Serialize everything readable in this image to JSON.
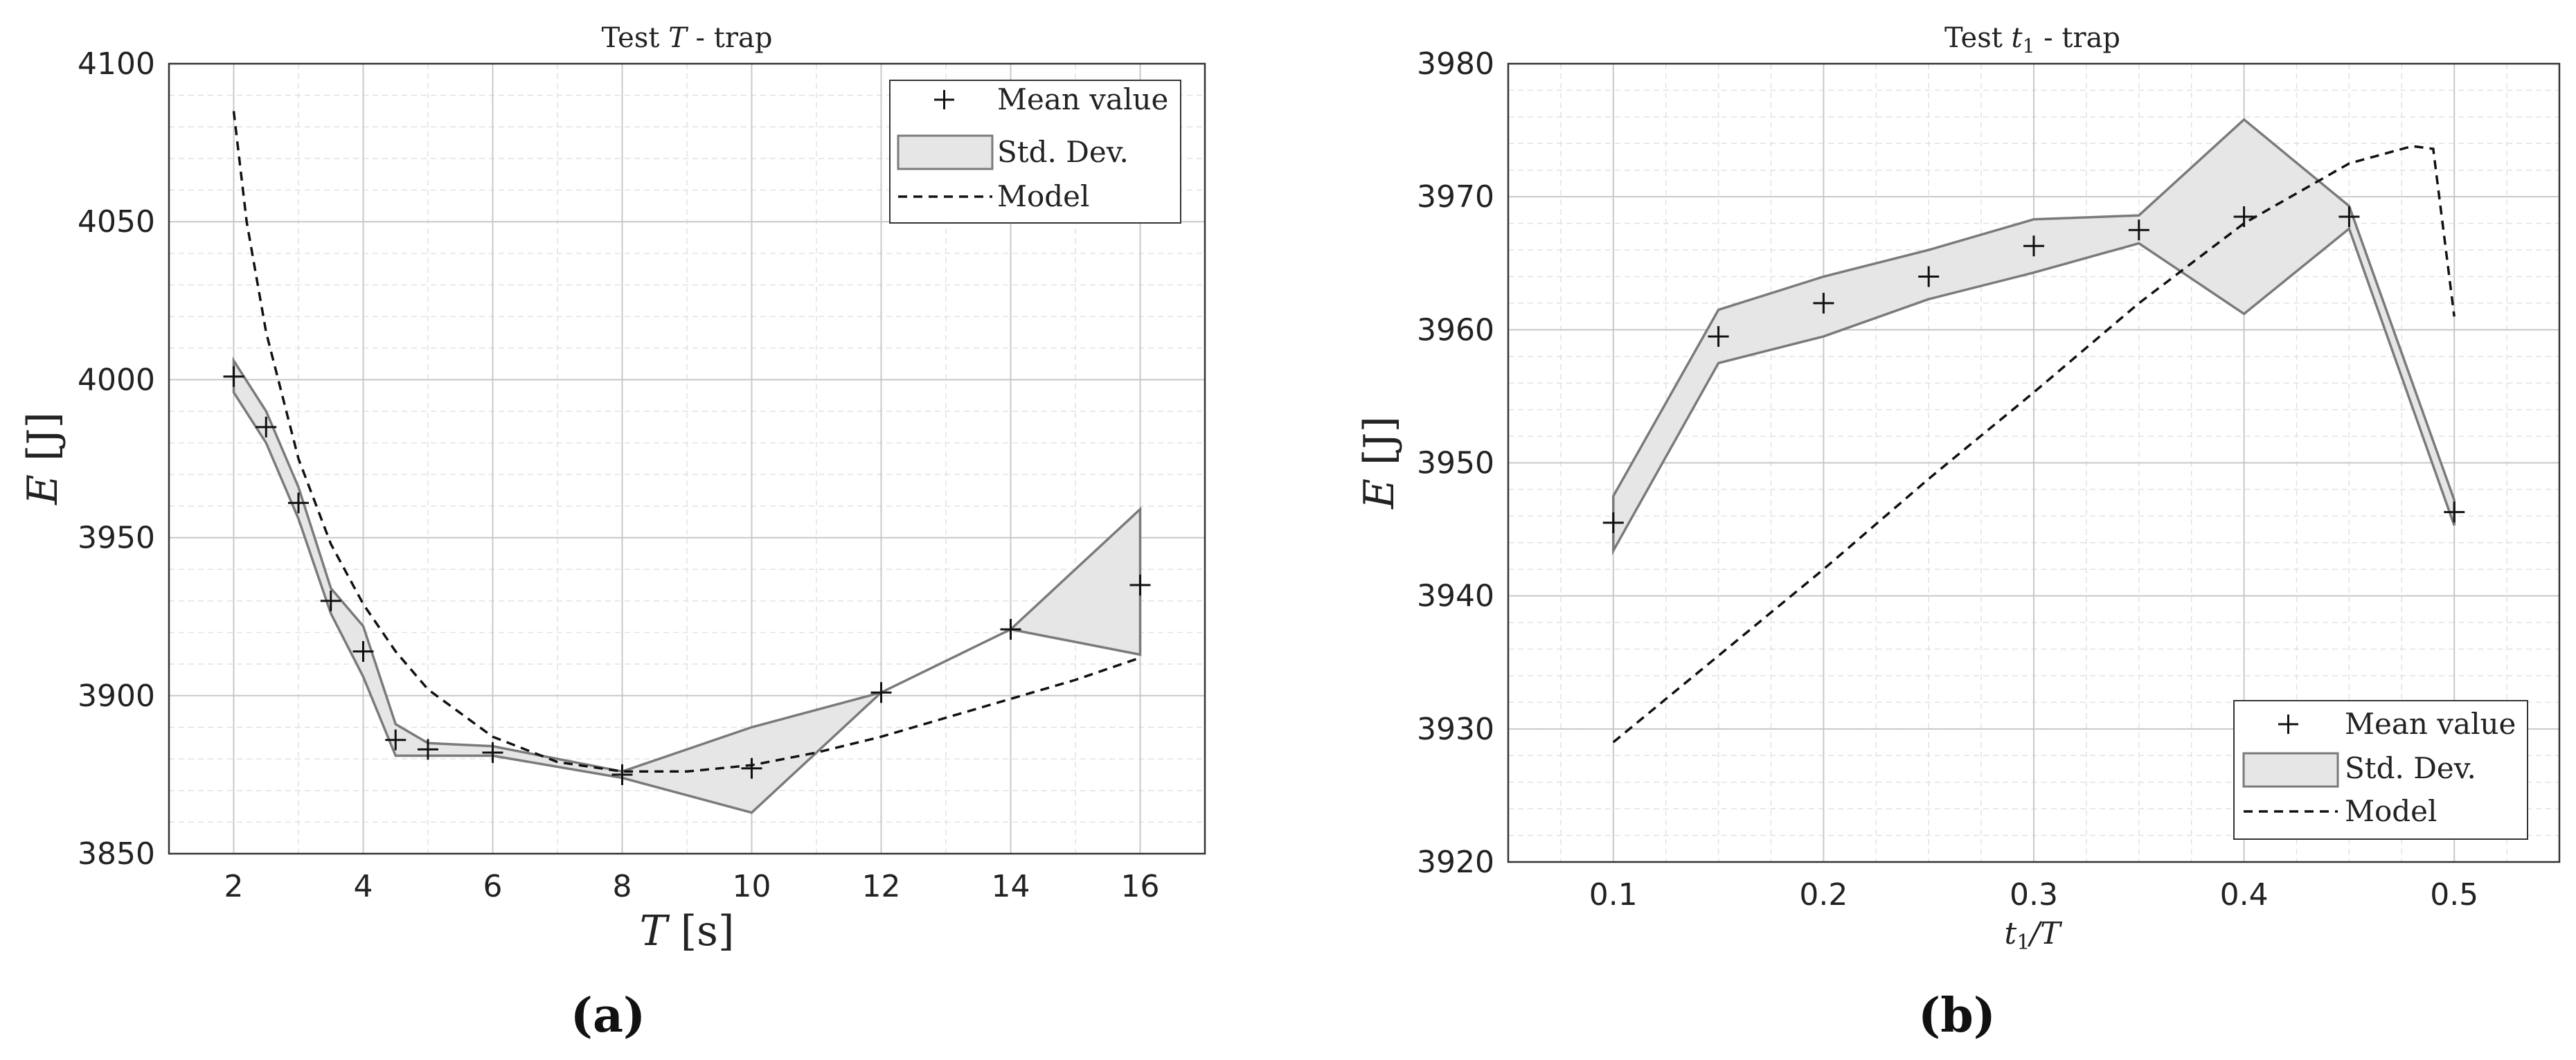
{
  "chart_data": [
    {
      "type": "line",
      "title": "Test T - trap",
      "xlabel": "T [s]",
      "ylabel": "E [J]",
      "sublabel": "(a)",
      "xlim": [
        1,
        17
      ],
      "ylim": [
        3850,
        4100
      ],
      "xticks": [
        2,
        4,
        6,
        8,
        10,
        12,
        14,
        16
      ],
      "yticks": [
        3850,
        3900,
        3950,
        4000,
        4050,
        4100
      ],
      "grid": true,
      "legend_position": "top-right",
      "legend": [
        "Mean value",
        "Std. Dev.",
        "Model"
      ],
      "x": [
        2,
        2.5,
        3,
        3.5,
        4,
        4.5,
        5,
        6,
        8,
        10,
        12,
        14,
        16
      ],
      "series": [
        {
          "name": "Mean value",
          "values": [
            4001,
            3985,
            3961,
            3930,
            3914,
            3886,
            3883,
            3882,
            3875,
            3877,
            3901,
            3921,
            3935
          ]
        },
        {
          "name": "Std. Dev.",
          "upper": [
            4006,
            3990,
            3966,
            3934,
            3922,
            3891,
            3885,
            3884,
            3876,
            3890,
            3901,
            3921,
            3959
          ],
          "lower": [
            3996,
            3980,
            3956,
            3926,
            3906,
            3881,
            3881,
            3881,
            3874,
            3863,
            3901,
            3921,
            3913
          ]
        },
        {
          "name": "Model",
          "x": [
            2,
            2.2,
            2.5,
            3,
            3.5,
            4,
            4.5,
            5,
            6,
            7,
            8,
            9,
            10,
            11,
            12,
            13,
            14,
            15,
            16
          ],
          "values": [
            4085,
            4050,
            4015,
            3975,
            3948,
            3929,
            3914,
            3902,
            3887,
            3879,
            3876,
            3876,
            3878,
            3882,
            3887,
            3893,
            3899,
            3905,
            3912
          ]
        }
      ]
    },
    {
      "type": "line",
      "title": "Test t1 - trap",
      "xlabel": "t1/T",
      "ylabel": "E [J]",
      "sublabel": "(b)",
      "xlim": [
        0.05,
        0.55
      ],
      "ylim": [
        3920,
        3980
      ],
      "xticks": [
        0.1,
        0.2,
        0.3,
        0.4,
        0.5
      ],
      "yticks": [
        3920,
        3930,
        3940,
        3950,
        3960,
        3970,
        3980
      ],
      "grid": true,
      "legend_position": "bottom-right",
      "legend": [
        "Mean value",
        "Std. Dev.",
        "Model"
      ],
      "x": [
        0.1,
        0.15,
        0.2,
        0.25,
        0.3,
        0.35,
        0.4,
        0.45,
        0.5
      ],
      "series": [
        {
          "name": "Mean value",
          "values": [
            3945.5,
            3959.5,
            3962,
            3964,
            3966.3,
            3967.5,
            3968.5,
            3968.5,
            3946.3
          ]
        },
        {
          "name": "Std. Dev.",
          "upper": [
            3947.5,
            3961.5,
            3964,
            3966,
            3968.3,
            3968.6,
            3975.8,
            3969.3,
            3947.2
          ],
          "lower": [
            3943.4,
            3957.5,
            3959.5,
            3962.3,
            3964.3,
            3966.5,
            3961.2,
            3967.6,
            3945.3
          ]
        },
        {
          "name": "Model",
          "x": [
            0.1,
            0.15,
            0.2,
            0.25,
            0.3,
            0.35,
            0.4,
            0.45,
            0.48,
            0.49,
            0.5
          ],
          "values": [
            3929,
            3935.5,
            3942,
            3948.8,
            3955.3,
            3962,
            3968,
            3972.5,
            3973.8,
            3973.6,
            3961
          ]
        }
      ]
    }
  ],
  "labels": {
    "a_title_pre": "Test ",
    "a_title_var": "T",
    "a_title_post": " - trap",
    "b_title_pre": "Test ",
    "b_title_var": "t",
    "b_title_sub": "1",
    "b_title_post": " - trap",
    "a_xlabel_var": "T",
    "a_xlabel_unit": " [s]",
    "ylabel_var": "E",
    "ylabel_unit": " [J]",
    "b_xlabel_var": "t",
    "b_xlabel_sub": "1",
    "b_xlabel_post": "/T",
    "sub_a": "(a)",
    "sub_b": "(b)",
    "legend_mean": "Mean value",
    "legend_std": "Std. Dev.",
    "legend_model": "Model"
  },
  "colors": {
    "band_fill": "#e6e6e6",
    "band_stroke": "#7a7a7a",
    "marker": "#111111",
    "model": "#111111",
    "grid_major": "#c8c8c8",
    "grid_minor": "#e2e2e2"
  }
}
